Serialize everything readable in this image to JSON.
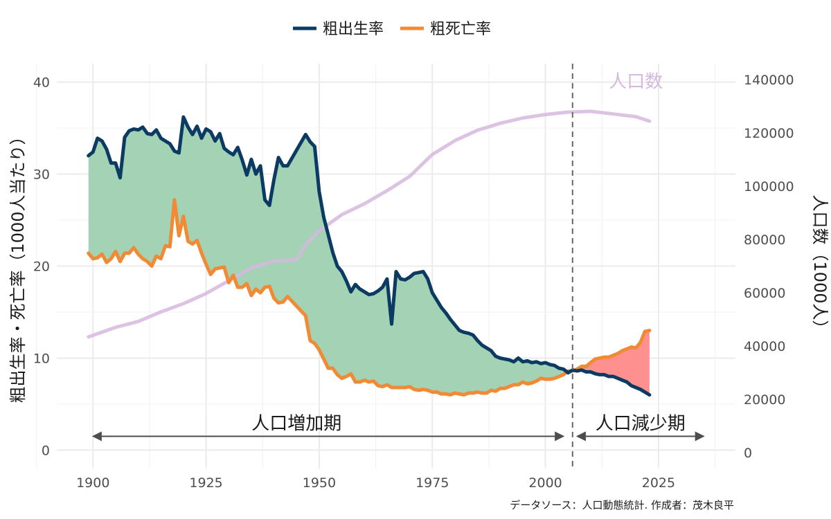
{
  "chart_data": {
    "type": "line",
    "legend": {
      "placement": "top",
      "items": [
        {
          "key": "birth",
          "label": "粗出生率",
          "color": "#0b3a63"
        },
        {
          "key": "death",
          "label": "粗死亡率",
          "color": "#f08a34"
        }
      ]
    },
    "ylabel_left": "粗出生率・死亡率（1000人当たり）",
    "ylabel_right": "人口数（1000人）",
    "caption": "データソース：人口動態統計. 作成者：茂木良平",
    "x_ticks": [
      "1900",
      "1925",
      "1950",
      "1975",
      "2000",
      "2025"
    ],
    "x_tick_values": [
      1900,
      1925,
      1950,
      1975,
      2000,
      2025
    ],
    "y_left_ticks": [
      "0",
      "10",
      "20",
      "30",
      "40"
    ],
    "y_left_tick_values": [
      0,
      10,
      20,
      30,
      40
    ],
    "y_right_ticks": [
      "0",
      "20000",
      "40000",
      "60000",
      "80000",
      "100000",
      "120000",
      "140000"
    ],
    "y_right_tick_values": [
      0,
      20000,
      40000,
      60000,
      80000,
      100000,
      120000,
      140000
    ],
    "xlim": [
      1892,
      2042
    ],
    "ylim_left": [
      -2,
      42
    ],
    "ylim_right": [
      -6000,
      146000
    ],
    "grid": true,
    "colors": {
      "birth": "#0b3a63",
      "death": "#f08a34",
      "population": "#d6b8de",
      "surplus_fill": "#9fd0b0",
      "deficit_fill": "#ff8a8a",
      "divider": "#666666",
      "arrow": "#4d4d4d"
    },
    "divider_year": 2006,
    "periods": [
      {
        "label": "人口増加期",
        "from": 1900,
        "to": 2004,
        "label_x": 1945
      },
      {
        "label": "人口減少期",
        "from": 2007,
        "to": 2035,
        "label_x": 2021
      }
    ],
    "population_label": "人口数",
    "population_label_x": 2020,
    "population_label_y": 137000,
    "series": [
      {
        "name": "粗出生率",
        "key": "birth",
        "x": [
          1899,
          1900,
          1901,
          1902,
          1903,
          1904,
          1905,
          1906,
          1907,
          1908,
          1909,
          1910,
          1911,
          1912,
          1913,
          1914,
          1915,
          1916,
          1917,
          1918,
          1919,
          1920,
          1921,
          1922,
          1923,
          1924,
          1925,
          1926,
          1927,
          1928,
          1929,
          1930,
          1931,
          1932,
          1933,
          1934,
          1935,
          1936,
          1937,
          1938,
          1939,
          1940,
          1941,
          1942,
          1943,
          1947,
          1948,
          1949,
          1950,
          1951,
          1952,
          1953,
          1954,
          1955,
          1956,
          1957,
          1958,
          1959,
          1960,
          1961,
          1962,
          1963,
          1964,
          1965,
          1966,
          1967,
          1968,
          1969,
          1970,
          1971,
          1972,
          1973,
          1974,
          1975,
          1976,
          1977,
          1978,
          1979,
          1980,
          1981,
          1982,
          1983,
          1984,
          1985,
          1986,
          1987,
          1988,
          1989,
          1990,
          1991,
          1992,
          1993,
          1994,
          1995,
          1996,
          1997,
          1998,
          1999,
          2000,
          2001,
          2002,
          2003,
          2004,
          2005,
          2006,
          2007,
          2008,
          2009,
          2010,
          2011,
          2012,
          2013,
          2014,
          2015,
          2016,
          2017,
          2018,
          2019,
          2020,
          2021,
          2022,
          2023
        ],
        "values": [
          32.0,
          32.4,
          33.9,
          33.6,
          32.7,
          31.2,
          31.2,
          29.6,
          34.0,
          34.7,
          34.9,
          34.8,
          35.1,
          34.4,
          34.3,
          34.8,
          33.9,
          33.6,
          33.3,
          32.5,
          32.3,
          36.2,
          35.1,
          34.3,
          35.2,
          33.9,
          34.9,
          34.6,
          33.6,
          34.4,
          32.8,
          32.4,
          32.1,
          32.9,
          31.5,
          29.9,
          31.6,
          30.0,
          30.9,
          27.2,
          26.6,
          29.4,
          31.8,
          30.9,
          30.9,
          34.3,
          33.5,
          33.0,
          28.1,
          25.3,
          23.4,
          21.5,
          20.0,
          19.4,
          18.4,
          17.2,
          18.0,
          17.5,
          17.2,
          16.9,
          17.0,
          17.3,
          17.7,
          18.6,
          13.7,
          19.4,
          18.6,
          18.5,
          18.8,
          19.2,
          19.3,
          19.4,
          18.6,
          17.1,
          16.3,
          15.5,
          14.9,
          14.2,
          13.6,
          13.0,
          12.8,
          12.7,
          12.5,
          11.9,
          11.4,
          11.1,
          10.8,
          10.2,
          10.0,
          9.9,
          9.8,
          9.6,
          10.0,
          9.6,
          9.7,
          9.5,
          9.6,
          9.4,
          9.5,
          9.3,
          9.2,
          8.9,
          8.8,
          8.4,
          8.7,
          8.6,
          8.7,
          8.5,
          8.5,
          8.3,
          8.2,
          8.2,
          8.0,
          8.0,
          7.8,
          7.6,
          7.4,
          7.0,
          6.8,
          6.6,
          6.3,
          6.0
        ]
      },
      {
        "name": "粗死亡率",
        "key": "death",
        "x": [
          1899,
          1900,
          1901,
          1902,
          1903,
          1904,
          1905,
          1906,
          1907,
          1908,
          1909,
          1910,
          1911,
          1912,
          1913,
          1914,
          1915,
          1916,
          1917,
          1918,
          1919,
          1920,
          1921,
          1922,
          1923,
          1924,
          1925,
          1926,
          1927,
          1928,
          1929,
          1930,
          1931,
          1932,
          1933,
          1934,
          1935,
          1936,
          1937,
          1938,
          1939,
          1940,
          1941,
          1942,
          1943,
          1947,
          1948,
          1949,
          1950,
          1951,
          1952,
          1953,
          1954,
          1955,
          1956,
          1957,
          1958,
          1959,
          1960,
          1961,
          1962,
          1963,
          1964,
          1965,
          1966,
          1967,
          1968,
          1969,
          1970,
          1971,
          1972,
          1973,
          1974,
          1975,
          1976,
          1977,
          1978,
          1979,
          1980,
          1981,
          1982,
          1983,
          1984,
          1985,
          1986,
          1987,
          1988,
          1989,
          1990,
          1991,
          1992,
          1993,
          1994,
          1995,
          1996,
          1997,
          1998,
          1999,
          2000,
          2001,
          2002,
          2003,
          2004,
          2005,
          2006,
          2007,
          2008,
          2009,
          2010,
          2011,
          2012,
          2013,
          2014,
          2015,
          2016,
          2017,
          2018,
          2019,
          2020,
          2021,
          2022,
          2023
        ],
        "values": [
          21.4,
          20.8,
          20.9,
          21.3,
          20.4,
          20.8,
          21.6,
          20.5,
          21.4,
          21.4,
          22.0,
          21.3,
          20.8,
          20.5,
          20.0,
          21.1,
          20.8,
          22.2,
          22.1,
          27.2,
          23.3,
          25.4,
          22.7,
          22.4,
          22.8,
          21.4,
          20.2,
          19.1,
          19.7,
          19.8,
          19.9,
          18.2,
          19.0,
          17.7,
          17.7,
          18.1,
          16.8,
          17.5,
          17.1,
          17.7,
          17.8,
          16.5,
          16.0,
          16.1,
          16.7,
          14.6,
          11.9,
          11.6,
          10.9,
          9.9,
          8.9,
          8.9,
          8.2,
          7.8,
          8.0,
          8.3,
          7.4,
          7.4,
          7.6,
          7.4,
          7.5,
          7.0,
          6.9,
          7.1,
          6.8,
          6.8,
          6.8,
          6.8,
          6.9,
          6.6,
          6.5,
          6.6,
          6.5,
          6.3,
          6.3,
          6.1,
          6.1,
          6.0,
          6.2,
          6.1,
          6.0,
          6.2,
          6.2,
          6.3,
          6.2,
          6.2,
          6.5,
          6.4,
          6.7,
          6.7,
          6.9,
          7.1,
          7.1,
          7.4,
          7.2,
          7.3,
          7.5,
          7.8,
          7.7,
          7.7,
          7.8,
          8.0,
          8.2,
          8.6,
          8.6,
          8.8,
          9.1,
          9.1,
          9.5,
          9.9,
          10.0,
          10.1,
          10.1,
          10.3,
          10.5,
          10.8,
          11.0,
          11.2,
          11.1,
          11.7,
          12.9,
          13.0
        ]
      },
      {
        "name": "人口数",
        "key": "population",
        "x": [
          1899,
          1905,
          1910,
          1915,
          1920,
          1925,
          1930,
          1935,
          1940,
          1945,
          1947,
          1950,
          1955,
          1960,
          1965,
          1970,
          1975,
          1980,
          1985,
          1990,
          1995,
          2000,
          2005,
          2010,
          2015,
          2020,
          2023
        ],
        "values": [
          43400,
          47000,
          49200,
          52800,
          55900,
          59700,
          64500,
          69300,
          71900,
          72400,
          78100,
          83200,
          89300,
          93400,
          98300,
          103700,
          111900,
          117100,
          121000,
          123600,
          125600,
          126900,
          127800,
          128100,
          127100,
          126100,
          124400
        ]
      }
    ]
  }
}
